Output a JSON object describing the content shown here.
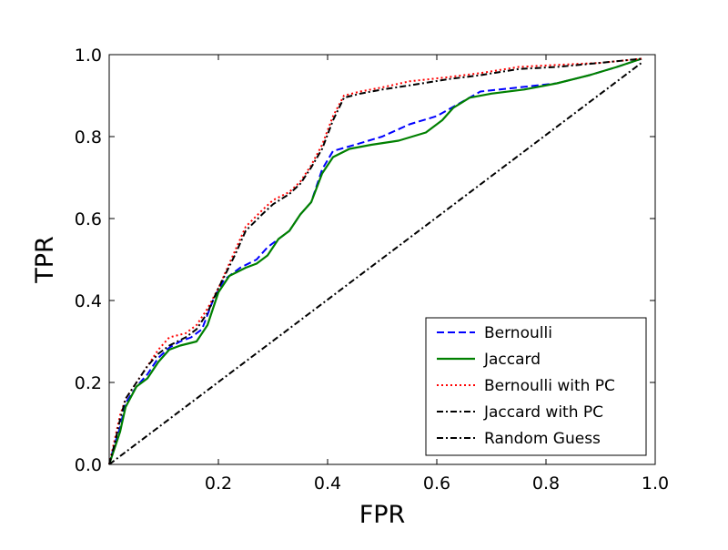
{
  "chart_data": {
    "type": "line",
    "title": "",
    "xlabel": "FPR",
    "ylabel": "TPR",
    "xlim": [
      0,
      1.0
    ],
    "ylim": [
      0,
      1.0
    ],
    "x_ticks": [
      {
        "value": 0.2,
        "label": "0.2"
      },
      {
        "value": 0.4,
        "label": "0.4"
      },
      {
        "value": 0.6,
        "label": "0.6"
      },
      {
        "value": 0.8,
        "label": "0.8"
      },
      {
        "value": 1.0,
        "label": "1.0"
      }
    ],
    "y_ticks": [
      {
        "value": 0.0,
        "label": "0.0"
      },
      {
        "value": 0.2,
        "label": "0.2"
      },
      {
        "value": 0.4,
        "label": "0.4"
      },
      {
        "value": 0.6,
        "label": "0.6"
      },
      {
        "value": 0.8,
        "label": "0.8"
      },
      {
        "value": 1.0,
        "label": "1.0"
      }
    ],
    "grid": false,
    "legend_position": "lower-right",
    "series": [
      {
        "name": "Bernoulli",
        "color": "#0000ff",
        "style": "dashed",
        "points": [
          [
            0.0,
            0.0
          ],
          [
            0.01,
            0.05
          ],
          [
            0.02,
            0.09
          ],
          [
            0.03,
            0.15
          ],
          [
            0.05,
            0.19
          ],
          [
            0.07,
            0.22
          ],
          [
            0.09,
            0.26
          ],
          [
            0.11,
            0.285
          ],
          [
            0.13,
            0.3
          ],
          [
            0.15,
            0.31
          ],
          [
            0.17,
            0.33
          ],
          [
            0.19,
            0.4
          ],
          [
            0.21,
            0.45
          ],
          [
            0.24,
            0.48
          ],
          [
            0.27,
            0.5
          ],
          [
            0.29,
            0.53
          ],
          [
            0.31,
            0.55
          ],
          [
            0.33,
            0.57
          ],
          [
            0.35,
            0.61
          ],
          [
            0.37,
            0.64
          ],
          [
            0.39,
            0.72
          ],
          [
            0.41,
            0.765
          ],
          [
            0.45,
            0.78
          ],
          [
            0.5,
            0.8
          ],
          [
            0.55,
            0.83
          ],
          [
            0.6,
            0.85
          ],
          [
            0.64,
            0.88
          ],
          [
            0.68,
            0.91
          ],
          [
            0.75,
            0.92
          ],
          [
            0.82,
            0.93
          ],
          [
            0.88,
            0.95
          ],
          [
            0.93,
            0.97
          ],
          [
            0.975,
            0.99
          ]
        ]
      },
      {
        "name": "Jaccard",
        "color": "#008000",
        "style": "solid",
        "points": [
          [
            0.0,
            0.0
          ],
          [
            0.01,
            0.04
          ],
          [
            0.02,
            0.08
          ],
          [
            0.03,
            0.14
          ],
          [
            0.05,
            0.19
          ],
          [
            0.07,
            0.21
          ],
          [
            0.09,
            0.25
          ],
          [
            0.11,
            0.28
          ],
          [
            0.13,
            0.29
          ],
          [
            0.16,
            0.3
          ],
          [
            0.18,
            0.34
          ],
          [
            0.2,
            0.42
          ],
          [
            0.22,
            0.46
          ],
          [
            0.25,
            0.48
          ],
          [
            0.27,
            0.49
          ],
          [
            0.29,
            0.51
          ],
          [
            0.31,
            0.55
          ],
          [
            0.33,
            0.57
          ],
          [
            0.35,
            0.61
          ],
          [
            0.37,
            0.64
          ],
          [
            0.39,
            0.71
          ],
          [
            0.41,
            0.75
          ],
          [
            0.44,
            0.77
          ],
          [
            0.48,
            0.78
          ],
          [
            0.53,
            0.79
          ],
          [
            0.58,
            0.81
          ],
          [
            0.61,
            0.84
          ],
          [
            0.63,
            0.87
          ],
          [
            0.66,
            0.895
          ],
          [
            0.7,
            0.905
          ],
          [
            0.76,
            0.915
          ],
          [
            0.82,
            0.93
          ],
          [
            0.88,
            0.95
          ],
          [
            0.93,
            0.97
          ],
          [
            0.975,
            0.99
          ]
        ]
      },
      {
        "name": "Bernoulli with PC",
        "color": "#ff0000",
        "style": "dotted",
        "points": [
          [
            0.0,
            0.0
          ],
          [
            0.01,
            0.06
          ],
          [
            0.02,
            0.12
          ],
          [
            0.03,
            0.16
          ],
          [
            0.05,
            0.2
          ],
          [
            0.07,
            0.24
          ],
          [
            0.09,
            0.28
          ],
          [
            0.11,
            0.31
          ],
          [
            0.14,
            0.32
          ],
          [
            0.16,
            0.34
          ],
          [
            0.18,
            0.38
          ],
          [
            0.2,
            0.43
          ],
          [
            0.23,
            0.52
          ],
          [
            0.25,
            0.58
          ],
          [
            0.28,
            0.62
          ],
          [
            0.3,
            0.645
          ],
          [
            0.33,
            0.665
          ],
          [
            0.35,
            0.69
          ],
          [
            0.37,
            0.73
          ],
          [
            0.39,
            0.78
          ],
          [
            0.41,
            0.85
          ],
          [
            0.43,
            0.9
          ],
          [
            0.46,
            0.91
          ],
          [
            0.5,
            0.92
          ],
          [
            0.55,
            0.935
          ],
          [
            0.62,
            0.945
          ],
          [
            0.68,
            0.955
          ],
          [
            0.75,
            0.97
          ],
          [
            0.82,
            0.975
          ],
          [
            0.9,
            0.98
          ],
          [
            0.975,
            0.99
          ]
        ]
      },
      {
        "name": "Jaccard with PC",
        "color": "#000000",
        "style": "dashdot",
        "points": [
          [
            0.0,
            0.0
          ],
          [
            0.01,
            0.05
          ],
          [
            0.02,
            0.11
          ],
          [
            0.03,
            0.16
          ],
          [
            0.05,
            0.2
          ],
          [
            0.07,
            0.24
          ],
          [
            0.09,
            0.27
          ],
          [
            0.11,
            0.29
          ],
          [
            0.14,
            0.31
          ],
          [
            0.16,
            0.33
          ],
          [
            0.18,
            0.37
          ],
          [
            0.2,
            0.43
          ],
          [
            0.23,
            0.51
          ],
          [
            0.25,
            0.57
          ],
          [
            0.28,
            0.61
          ],
          [
            0.3,
            0.635
          ],
          [
            0.33,
            0.66
          ],
          [
            0.35,
            0.685
          ],
          [
            0.37,
            0.725
          ],
          [
            0.39,
            0.77
          ],
          [
            0.41,
            0.84
          ],
          [
            0.43,
            0.895
          ],
          [
            0.46,
            0.905
          ],
          [
            0.5,
            0.915
          ],
          [
            0.55,
            0.925
          ],
          [
            0.62,
            0.94
          ],
          [
            0.68,
            0.95
          ],
          [
            0.75,
            0.965
          ],
          [
            0.82,
            0.97
          ],
          [
            0.9,
            0.98
          ],
          [
            0.975,
            0.99
          ]
        ]
      },
      {
        "name": "Random Guess",
        "color": "#000000",
        "style": "dashdot",
        "points": [
          [
            0.0,
            0.0
          ],
          [
            0.975,
            0.98
          ]
        ]
      }
    ]
  }
}
